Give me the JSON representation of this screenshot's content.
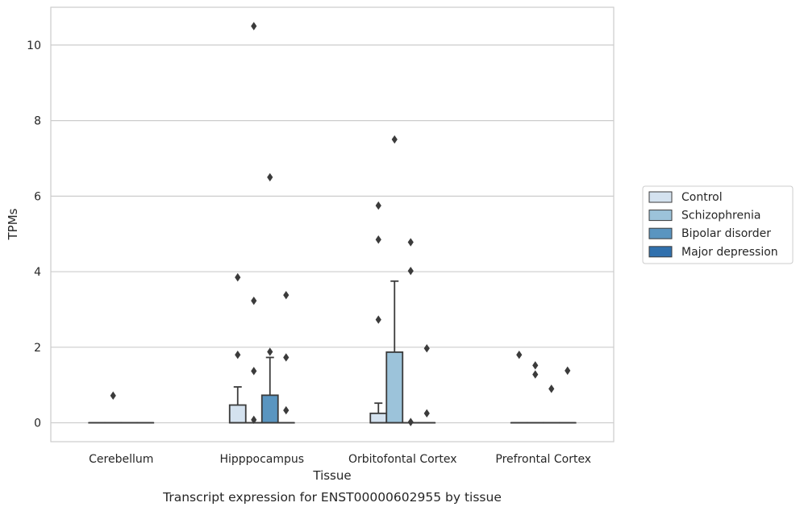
{
  "chart_data": {
    "type": "box",
    "caption": "Transcript expression for ENST00000602955 by tissue",
    "xlabel": "Tissue",
    "ylabel": "TPMs",
    "ylim": [
      -0.5,
      11.0
    ],
    "yticks": [
      0,
      2,
      4,
      6,
      8,
      10
    ],
    "grid": true,
    "legend_position": "right",
    "categories": [
      "Cerebellum",
      "Hipppocampus",
      "Orbitofontal Cortex",
      "Prefrontal Cortex"
    ],
    "series": [
      {
        "name": "Control",
        "color": "#d4e2ef",
        "boxes": [
          {
            "q1": 0,
            "median": 0,
            "q3": 0,
            "whisker_low": 0,
            "whisker_high": 0,
            "outliers": []
          },
          {
            "q1": 0,
            "median": 0,
            "q3": 0.47,
            "whisker_low": 0,
            "whisker_high": 0.95,
            "outliers": [
              3.85,
              1.8
            ]
          },
          {
            "q1": 0,
            "median": 0,
            "q3": 0.25,
            "whisker_low": 0,
            "whisker_high": 0.52,
            "outliers": [
              5.75,
              4.85,
              2.73
            ]
          },
          {
            "q1": 0,
            "median": 0,
            "q3": 0,
            "whisker_low": 0,
            "whisker_high": 0,
            "outliers": [
              1.8
            ]
          }
        ]
      },
      {
        "name": "Schizophrenia",
        "color": "#9cc3da",
        "boxes": [
          {
            "q1": 0,
            "median": 0,
            "q3": 0,
            "whisker_low": 0,
            "whisker_high": 0,
            "outliers": [
              0.72
            ]
          },
          {
            "q1": 0,
            "median": 0,
            "q3": 0,
            "whisker_low": 0,
            "whisker_high": 0,
            "outliers": [
              10.5,
              3.23,
              1.37,
              0.08
            ]
          },
          {
            "q1": 0,
            "median": 0,
            "q3": 1.87,
            "whisker_low": 0,
            "whisker_high": 3.75,
            "outliers": [
              7.5
            ]
          },
          {
            "q1": 0,
            "median": 0,
            "q3": 0,
            "whisker_low": 0,
            "whisker_high": 0,
            "outliers": [
              1.52,
              1.28
            ]
          }
        ]
      },
      {
        "name": "Bipolar disorder",
        "color": "#5a95c0",
        "boxes": [
          {
            "q1": 0,
            "median": 0,
            "q3": 0,
            "whisker_low": 0,
            "whisker_high": 0,
            "outliers": []
          },
          {
            "q1": 0,
            "median": 0,
            "q3": 0.73,
            "whisker_low": 0,
            "whisker_high": 1.73,
            "outliers": [
              6.5,
              1.88
            ]
          },
          {
            "q1": 0,
            "median": 0,
            "q3": 0,
            "whisker_low": 0,
            "whisker_high": 0,
            "outliers": [
              4.78,
              4.02,
              0.02
            ]
          },
          {
            "q1": 0,
            "median": 0,
            "q3": 0,
            "whisker_low": 0,
            "whisker_high": 0,
            "outliers": [
              0.9
            ]
          }
        ]
      },
      {
        "name": "Major depression",
        "color": "#3070ad",
        "boxes": [
          {
            "q1": 0,
            "median": 0,
            "q3": 0,
            "whisker_low": 0,
            "whisker_high": 0,
            "outliers": []
          },
          {
            "q1": 0,
            "median": 0,
            "q3": 0,
            "whisker_low": 0,
            "whisker_high": 0,
            "outliers": [
              3.38,
              1.73,
              0.33
            ]
          },
          {
            "q1": 0,
            "median": 0,
            "q3": 0,
            "whisker_low": 0,
            "whisker_high": 0,
            "outliers": [
              1.97,
              0.25
            ]
          },
          {
            "q1": 0,
            "median": 0,
            "q3": 0,
            "whisker_low": 0,
            "whisker_high": 0,
            "outliers": [
              1.38
            ]
          }
        ]
      }
    ]
  }
}
